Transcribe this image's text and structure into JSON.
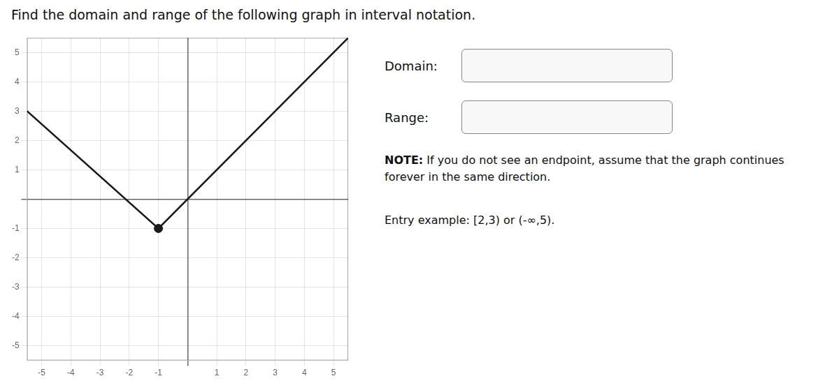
{
  "chart_data": {
    "type": "line",
    "title": "Find the domain and range of the following graph in interval notation.",
    "series": [
      {
        "type": "line",
        "color": "#1a1a1a",
        "x": [
          -5.5,
          -1,
          5.5
        ],
        "values": [
          3,
          -1,
          5.5
        ]
      },
      {
        "type": "scatter",
        "color": "#1a1a1a",
        "marker": "circle",
        "x": [
          -1
        ],
        "values": [
          -1
        ]
      }
    ],
    "xlim": [
      -5.5,
      5.5
    ],
    "ylim": [
      -5.5,
      5.5
    ],
    "xticks": [
      -5,
      -4,
      -3,
      -2,
      -1,
      {
        "value": 0,
        "label": ""
      },
      1,
      2,
      3,
      4,
      5
    ],
    "yticks": [
      -5,
      -4,
      -3,
      -2,
      -1,
      {
        "value": 0,
        "label": ""
      },
      1,
      2,
      3,
      4,
      5
    ],
    "grid": true,
    "legend": false,
    "annotations": [
      "Domain:",
      "Range:",
      "NOTE: If you do not see an endpoint, assume that the graph continues forever in the same direction.",
      "Entry example: [2,3) or (-∞,5)."
    ]
  }
}
